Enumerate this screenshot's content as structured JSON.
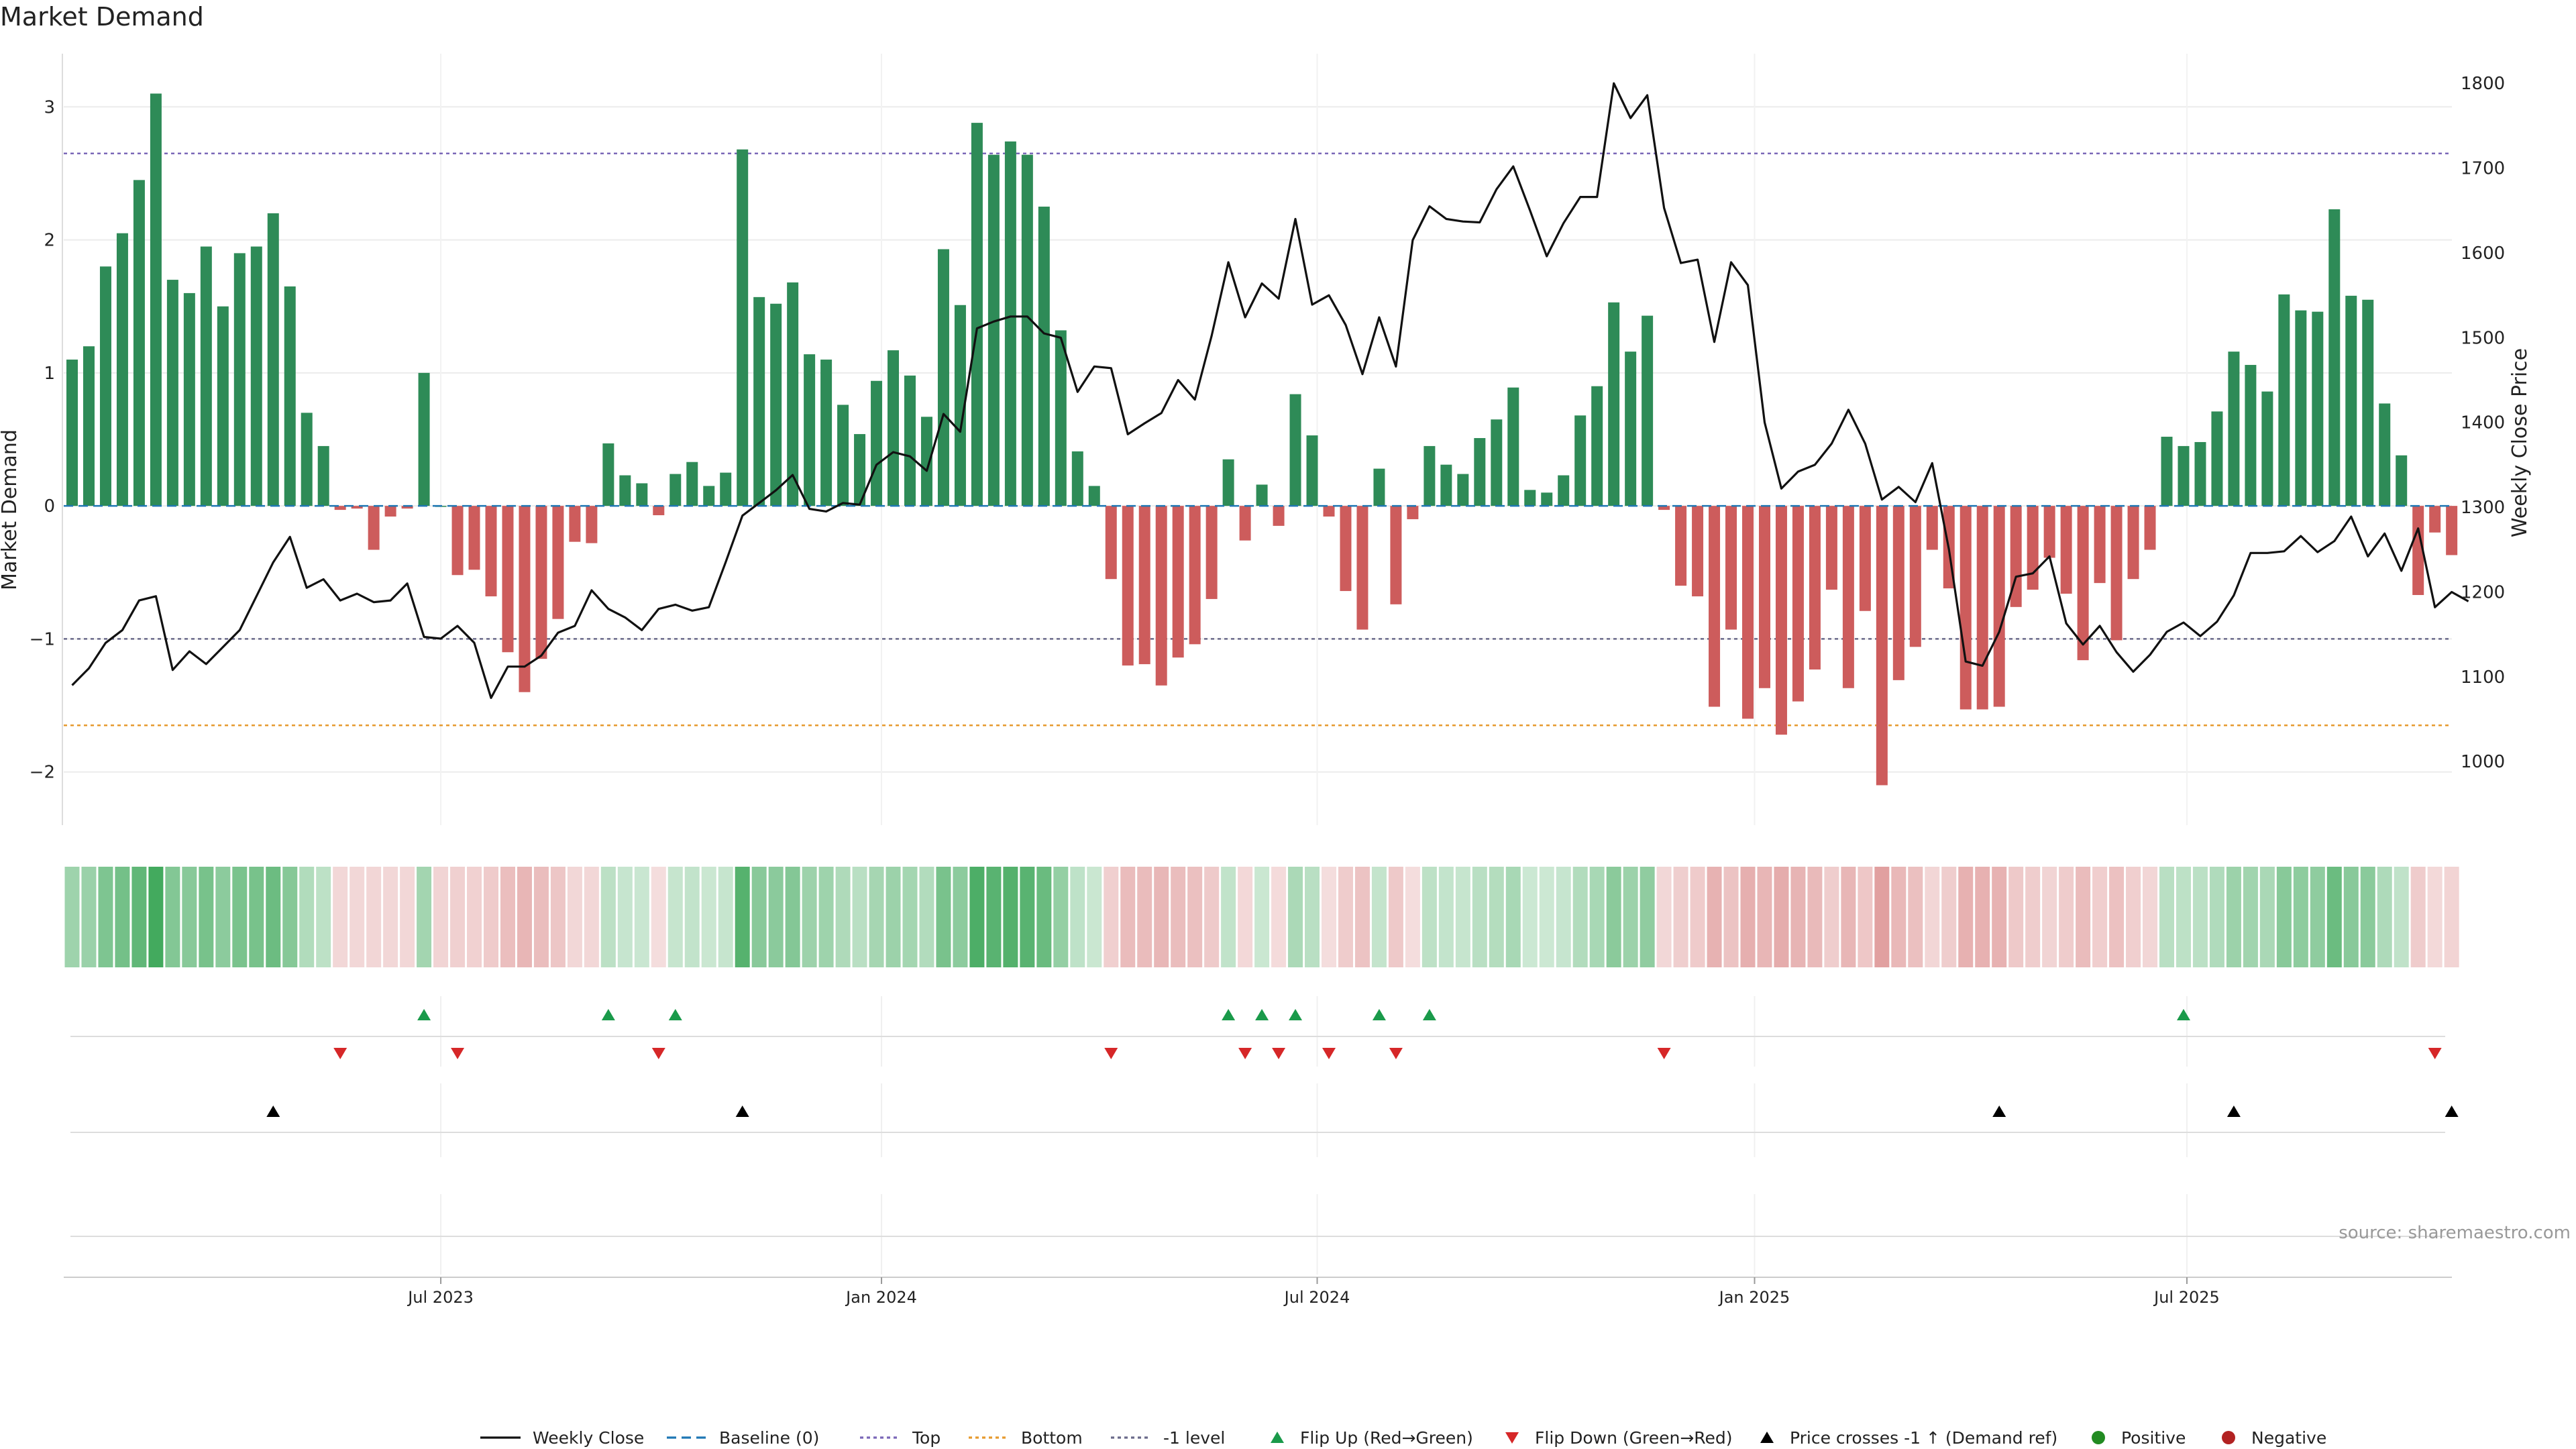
{
  "chart_data": {
    "type": "bar",
    "title": "Market Demand",
    "ylabel_left": "Market Demand",
    "ylabel_right": "Weekly Close Price",
    "y_left_range": [
      -2.4,
      3.4
    ],
    "y_left_ticks": [
      -2,
      -1,
      0,
      1,
      2,
      3
    ],
    "y_left_tick_labels": [
      "−2",
      "−1",
      "0",
      "1",
      "2",
      "3"
    ],
    "y_right_range": [
      925,
      1835
    ],
    "y_right_ticks": [
      1000,
      1100,
      1200,
      1300,
      1400,
      1500,
      1600,
      1700,
      1800
    ],
    "y_right_tick_labels": [
      "1000",
      "1100",
      "1200",
      "1300",
      "1400",
      "1500",
      "1600",
      "1700",
      "1800"
    ],
    "x_tick_labels": [
      "Jul 2023",
      "Jan 2024",
      "Jul 2024",
      "Jan 2025",
      "Jul 2025"
    ],
    "x_tick_week_index": [
      22,
      48.3,
      74.3,
      100.4,
      126.2
    ],
    "reference_lines": {
      "baseline": 0,
      "top": 2.65,
      "bottom": -1.65,
      "minus_one": -1
    },
    "demand": [
      1.1,
      1.2,
      1.8,
      2.05,
      2.45,
      3.1,
      1.7,
      1.6,
      1.95,
      1.5,
      1.9,
      1.95,
      2.2,
      1.65,
      0.7,
      0.45,
      -0.03,
      -0.02,
      -0.33,
      -0.08,
      -0.02,
      1.0,
      0.0,
      -0.52,
      -0.48,
      -0.68,
      -1.1,
      -1.4,
      -1.15,
      -0.85,
      -0.27,
      -0.28,
      0.47,
      0.23,
      0.17,
      -0.07,
      0.24,
      0.33,
      0.15,
      0.25,
      2.68,
      1.57,
      1.52,
      1.68,
      1.14,
      1.1,
      0.76,
      0.54,
      0.94,
      1.17,
      0.98,
      0.67,
      1.93,
      1.51,
      2.88,
      2.64,
      2.74,
      2.64,
      2.25,
      1.32,
      0.41,
      0.15,
      -0.55,
      -1.2,
      -1.19,
      -1.35,
      -1.14,
      -1.04,
      -0.7,
      0.35,
      -0.26,
      0.16,
      -0.15,
      0.84,
      0.53,
      -0.08,
      -0.64,
      -0.93,
      0.28,
      -0.74,
      -0.1,
      0.45,
      0.31,
      0.24,
      0.51,
      0.65,
      0.89,
      0.12,
      0.1,
      0.23,
      0.68,
      0.9,
      1.53,
      1.16,
      1.43,
      -0.03,
      -0.6,
      -0.68,
      -1.51,
      -0.93,
      -1.6,
      -1.37,
      -1.72,
      -1.47,
      -1.23,
      -0.63,
      -1.37,
      -0.79,
      -2.1,
      -1.31,
      -1.06,
      -0.33,
      -0.62,
      -1.53,
      -1.53,
      -1.51,
      -0.76,
      -0.63,
      -0.39,
      -0.66,
      -1.16,
      -0.58,
      -1.01,
      -0.55,
      -0.33,
      0.52,
      0.45,
      0.48,
      0.71,
      1.16,
      1.06,
      0.86,
      1.59,
      1.47,
      1.46,
      2.23,
      1.58,
      1.55,
      0.77,
      0.38,
      -0.67,
      -0.2,
      -0.37
    ],
    "weekly_close": [
      1090,
      1110,
      1140,
      1155,
      1190,
      1195,
      1108,
      1130,
      1115,
      1135,
      1155,
      1195,
      1235,
      1265,
      1205,
      1215,
      1190,
      1198,
      1188,
      1190,
      1210,
      1147,
      1145,
      1160,
      1140,
      1075,
      1112,
      1112,
      1125,
      1152,
      1160,
      1202,
      1180,
      1170,
      1155,
      1180,
      1185,
      1178,
      1182,
      1235,
      1290,
      1305,
      1320,
      1338,
      1298,
      1295,
      1305,
      1303,
      1350,
      1365,
      1360,
      1343,
      1410,
      1389,
      1511,
      1519,
      1525,
      1525,
      1505,
      1500,
      1436,
      1466,
      1464,
      1386,
      1399,
      1411,
      1450,
      1427,
      1502,
      1589,
      1524,
      1564,
      1546,
      1640,
      1539,
      1550,
      1515,
      1457,
      1524,
      1466,
      1615,
      1655,
      1640,
      1637,
      1636,
      1675,
      1702,
      1650,
      1596,
      1635,
      1666,
      1666,
      1800,
      1759,
      1786,
      1653,
      1588,
      1592,
      1495,
      1589,
      1562,
      1400,
      1322,
      1342,
      1350,
      1375,
      1415,
      1375,
      1309,
      1324,
      1306,
      1352,
      1250,
      1118,
      1113,
      1153,
      1218,
      1222,
      1242,
      1163,
      1138,
      1160,
      1129,
      1106,
      1126,
      1153,
      1164,
      1148,
      1165,
      1196,
      1246,
      1246,
      1248,
      1266,
      1247,
      1260,
      1289,
      1242,
      1269,
      1225,
      1275,
      1182,
      1200,
      1189
    ],
    "heat_strip": [
      1.1,
      1.2,
      1.8,
      2.05,
      2.45,
      3.1,
      1.7,
      1.6,
      1.95,
      1.5,
      1.9,
      1.95,
      2.2,
      1.65,
      0.7,
      0.45,
      -0.3,
      -0.3,
      -0.33,
      -0.3,
      -0.3,
      1.0,
      -0.4,
      -0.52,
      -0.48,
      -0.68,
      -1.1,
      -1.4,
      -1.15,
      -0.85,
      -0.27,
      -0.28,
      0.47,
      0.23,
      0.17,
      -0.07,
      0.24,
      0.33,
      0.15,
      0.25,
      2.68,
      1.57,
      1.52,
      1.68,
      1.14,
      1.1,
      0.76,
      0.54,
      0.94,
      1.17,
      0.98,
      0.67,
      1.93,
      1.51,
      2.88,
      2.64,
      2.74,
      2.64,
      2.25,
      1.32,
      0.41,
      0.15,
      -0.55,
      -1.2,
      -1.19,
      -1.35,
      -1.14,
      -1.04,
      -0.7,
      0.35,
      -0.26,
      0.16,
      -0.15,
      0.84,
      0.53,
      -0.08,
      -0.64,
      -0.93,
      0.28,
      -0.74,
      -0.1,
      0.45,
      0.31,
      0.24,
      0.51,
      0.65,
      0.89,
      0.12,
      0.1,
      0.23,
      0.68,
      0.9,
      1.53,
      1.16,
      1.43,
      -0.3,
      -0.6,
      -0.68,
      -1.51,
      -0.93,
      -1.6,
      -1.37,
      -1.72,
      -1.47,
      -1.23,
      -0.63,
      -1.37,
      -0.79,
      -2.1,
      -1.31,
      -1.06,
      -0.33,
      -0.62,
      -1.53,
      -1.53,
      -1.51,
      -0.76,
      -0.63,
      -0.39,
      -0.66,
      -1.16,
      -0.58,
      -1.01,
      -0.55,
      -0.33,
      0.52,
      0.45,
      0.48,
      0.71,
      1.16,
      1.06,
      0.86,
      1.59,
      1.47,
      1.46,
      2.23,
      1.58,
      1.55,
      0.77,
      0.38,
      -0.67,
      -0.2,
      -0.37
    ],
    "flip_up_weeks": [
      21,
      32,
      36,
      69,
      71,
      73,
      78,
      81,
      126
    ],
    "flip_down_weeks": [
      16,
      23,
      35,
      62,
      70,
      72,
      75,
      79,
      95,
      141
    ],
    "price_cross_weeks": [
      12,
      40,
      115,
      129,
      142
    ],
    "series_colors": {
      "positive": "#2e8b57",
      "negative": "#cd5c5c",
      "close": "#111111",
      "baseline": "#1f77b4",
      "top": "#7b68b8",
      "bottom": "#e69a2e",
      "minus_one": "#6a6a8a",
      "flip_up": "#1a9a4a",
      "flip_down": "#d62728",
      "cross": "#000000",
      "positive_dot": "#228b22",
      "negative_dot": "#b22222"
    },
    "legend": [
      "Weekly Close",
      "Baseline (0)",
      "Top",
      "Bottom",
      "-1 level",
      "Flip Up (Red→Green)",
      "Flip Down (Green→Red)",
      "Price crosses -1 ↑ (Demand ref)",
      "Positive",
      "Negative"
    ],
    "legend_position": "bottom-center",
    "source": "source: sharemaestro.com"
  }
}
